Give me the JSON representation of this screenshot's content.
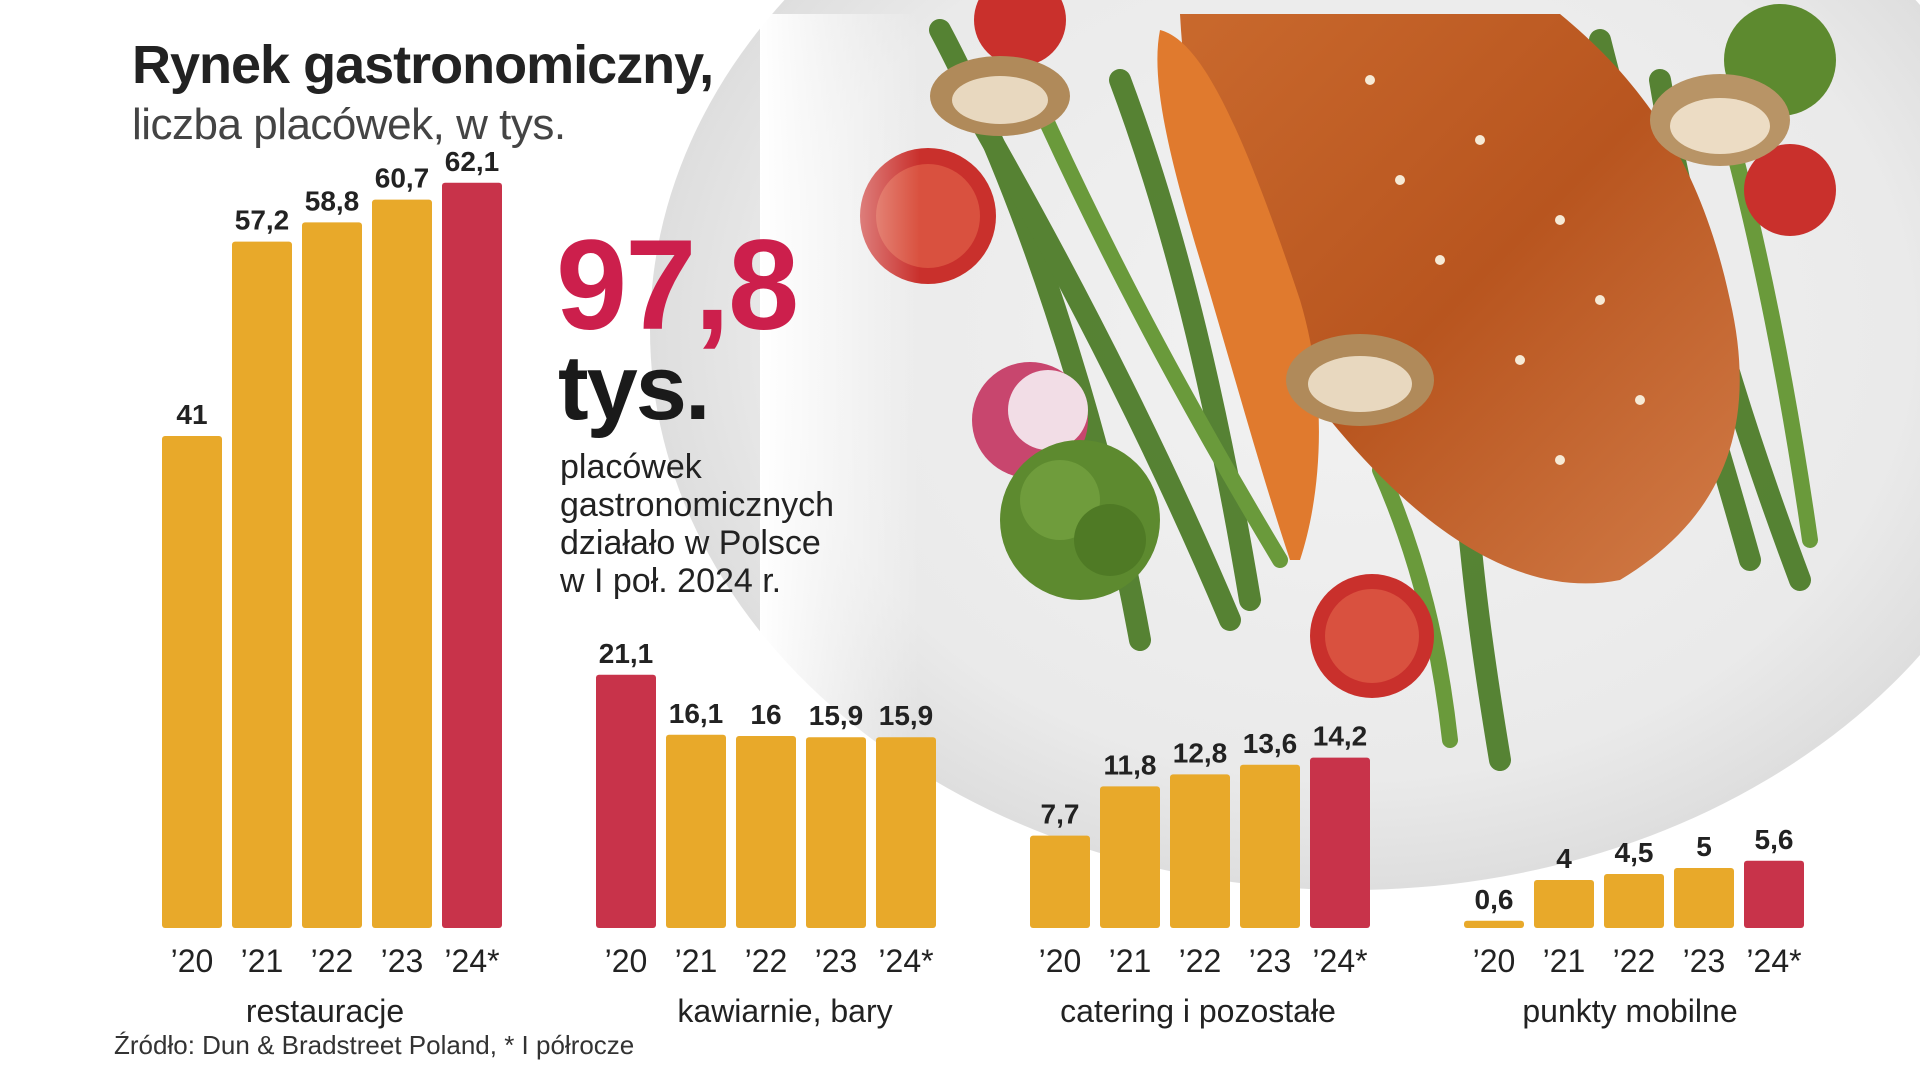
{
  "title": "Rynek gastronomiczny,",
  "subtitle": "liczba placówek, w tys.",
  "highlight": {
    "value": "97,8",
    "unit": "tys.",
    "description_lines": [
      "placówek",
      "gastronomicznych",
      "działało w Polsce",
      "w I poł. 2024 r."
    ]
  },
  "source": "Źródło: Dun & Bradstreet Poland, * I półrocze",
  "colors": {
    "bar": "#e8a92a",
    "highlight_bar": "#c8334a",
    "accent": "#cc1f4c"
  },
  "chart_data": [
    {
      "type": "bar",
      "title": "restauracje",
      "categories": [
        "’20",
        "’21",
        "’22",
        "’23",
        "’24*"
      ],
      "values": [
        41,
        57.2,
        58.8,
        60.7,
        62.1
      ],
      "value_labels": [
        "41",
        "57,2",
        "58,8",
        "60,7",
        "62,1"
      ],
      "highlight_index": 4
    },
    {
      "type": "bar",
      "title": "kawiarnie, bary",
      "categories": [
        "’20",
        "’21",
        "’22",
        "’23",
        "’24*"
      ],
      "values": [
        21.1,
        16.1,
        16,
        15.9,
        15.9
      ],
      "value_labels": [
        "21,1",
        "16,1",
        "16",
        "15,9",
        "15,9"
      ],
      "highlight_index": 0
    },
    {
      "type": "bar",
      "title": "catering i pozostałe",
      "categories": [
        "’20",
        "’21",
        "’22",
        "’23",
        "’24*"
      ],
      "values": [
        7.7,
        11.8,
        12.8,
        13.6,
        14.2
      ],
      "value_labels": [
        "7,7",
        "11,8",
        "12,8",
        "13,6",
        "14,2"
      ],
      "highlight_index": 4
    },
    {
      "type": "bar",
      "title": "punkty mobilne",
      "categories": [
        "’20",
        "’21",
        "’22",
        "’23",
        "’24*"
      ],
      "values": [
        0.6,
        4,
        4.5,
        5,
        5.6
      ],
      "value_labels": [
        "0,6",
        "4",
        "4,5",
        "5",
        "5,6"
      ],
      "highlight_index": 4
    }
  ]
}
